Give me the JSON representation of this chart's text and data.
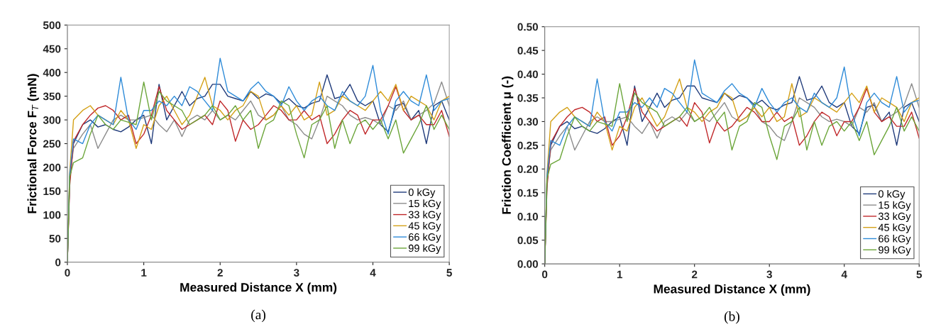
{
  "chart_data": [
    {
      "type": "line",
      "xlabel": "Measured Distance X (mm)",
      "ylabel": "Frictional Force F$_{T}$ (mN)",
      "xlim": [
        0,
        5
      ],
      "xticks": [
        0,
        1,
        2,
        3,
        4,
        5
      ],
      "ylim": [
        0,
        500
      ],
      "yticks": [
        0,
        50,
        100,
        150,
        200,
        250,
        300,
        350,
        400,
        450,
        500
      ],
      "grid": false,
      "legend": "bottom right",
      "marker": "none",
      "line_style": "solid",
      "annotations": [
        "(a)"
      ],
      "x": [
        0,
        0.03,
        0.08,
        0.2,
        0.3,
        0.4,
        0.5,
        0.6,
        0.7,
        0.8,
        0.9,
        1.0,
        1.1,
        1.2,
        1.3,
        1.4,
        1.5,
        1.6,
        1.7,
        1.8,
        1.9,
        2.0,
        2.1,
        2.2,
        2.3,
        2.4,
        2.5,
        2.6,
        2.7,
        2.8,
        2.9,
        3.0,
        3.1,
        3.2,
        3.3,
        3.4,
        3.5,
        3.6,
        3.7,
        3.8,
        3.9,
        4.0,
        4.1,
        4.2,
        4.3,
        4.4,
        4.5,
        4.6,
        4.7,
        4.8,
        4.9,
        5.0
      ],
      "series": [
        {
          "name": "0 kGy",
          "color": "#1f3a7a",
          "values": [
            0,
            170,
            250,
            290,
            300,
            285,
            290,
            280,
            275,
            285,
            300,
            310,
            250,
            375,
            300,
            330,
            360,
            330,
            345,
            350,
            375,
            375,
            350,
            345,
            340,
            360,
            345,
            355,
            350,
            335,
            345,
            330,
            325,
            335,
            340,
            395,
            345,
            350,
            375,
            340,
            330,
            340,
            290,
            275,
            330,
            335,
            300,
            320,
            250,
            330,
            340,
            300
          ]
        },
        {
          "name": "15 kGy",
          "color": "#8c8c8c",
          "values": [
            0,
            180,
            240,
            270,
            290,
            240,
            270,
            300,
            310,
            300,
            300,
            305,
            310,
            290,
            275,
            300,
            265,
            300,
            310,
            300,
            320,
            300,
            310,
            300,
            320,
            340,
            310,
            300,
            310,
            330,
            300,
            290,
            270,
            260,
            300,
            350,
            340,
            330,
            310,
            300,
            305,
            300,
            290,
            330,
            320,
            340,
            300,
            310,
            320,
            335,
            380,
            330
          ]
        },
        {
          "name": "33 kGy",
          "color": "#c0282a",
          "values": [
            0,
            160,
            255,
            290,
            310,
            325,
            330,
            320,
            300,
            310,
            250,
            270,
            310,
            370,
            320,
            300,
            280,
            290,
            300,
            310,
            290,
            340,
            320,
            255,
            300,
            280,
            290,
            310,
            330,
            320,
            300,
            300,
            320,
            300,
            310,
            250,
            270,
            300,
            320,
            310,
            270,
            300,
            300,
            330,
            370,
            320,
            300,
            310,
            290,
            290,
            320,
            265
          ]
        },
        {
          "name": "45 kGy",
          "color": "#d4a017",
          "values": [
            0,
            190,
            300,
            320,
            330,
            310,
            300,
            290,
            320,
            300,
            240,
            290,
            280,
            330,
            350,
            320,
            290,
            310,
            350,
            390,
            330,
            320,
            300,
            320,
            330,
            360,
            350,
            300,
            310,
            330,
            310,
            330,
            300,
            310,
            380,
            310,
            320,
            350,
            340,
            330,
            320,
            340,
            360,
            340,
            375,
            320,
            350,
            340,
            330,
            300,
            340,
            350
          ]
        },
        {
          "name": "66 kGy",
          "color": "#2e8bd8",
          "values": [
            0,
            185,
            260,
            250,
            290,
            310,
            300,
            290,
            390,
            300,
            280,
            320,
            320,
            340,
            330,
            350,
            330,
            370,
            360,
            340,
            320,
            430,
            360,
            350,
            340,
            365,
            380,
            360,
            350,
            330,
            370,
            340,
            320,
            340,
            350,
            330,
            320,
            360,
            340,
            330,
            350,
            415,
            320,
            270,
            340,
            360,
            340,
            330,
            395,
            320,
            340,
            345
          ]
        },
        {
          "name": "99 kGy",
          "color": "#6ba539",
          "values": [
            0,
            180,
            210,
            220,
            270,
            310,
            290,
            280,
            300,
            295,
            290,
            380,
            300,
            360,
            340,
            330,
            320,
            290,
            300,
            310,
            330,
            300,
            310,
            330,
            300,
            320,
            240,
            290,
            300,
            340,
            330,
            270,
            220,
            290,
            300,
            330,
            240,
            300,
            250,
            290,
            300,
            280,
            300,
            260,
            300,
            230,
            260,
            290,
            330,
            280,
            310,
            280
          ]
        }
      ]
    },
    {
      "type": "line",
      "xlabel": "Measured Distance X (mm)",
      "ylabel": "Friction Coefficient μ (-)",
      "xlim": [
        0,
        5
      ],
      "xticks": [
        0,
        1,
        2,
        3,
        4,
        5
      ],
      "ylim": [
        0,
        0.5
      ],
      "yticks": [
        {
          "value": 0,
          "label": "0.00"
        },
        {
          "value": 0.05,
          "label": "0.05"
        },
        {
          "value": 0.1,
          "label": "0.10"
        },
        {
          "value": 0.15,
          "label": "0.15"
        },
        {
          "value": 0.2,
          "label": "0.20"
        },
        {
          "value": 0.25,
          "label": "0.25"
        },
        {
          "value": 0.3,
          "label": "0.30"
        },
        {
          "value": 0.35,
          "label": "0.35"
        },
        {
          "value": 0.4,
          "label": "0.40"
        },
        {
          "value": 0.45,
          "label": "0.45"
        },
        {
          "value": 0.5,
          "label": "0.50"
        }
      ],
      "grid": false,
      "legend": "bottom right",
      "marker": "none",
      "line_style": "solid",
      "annotations": [
        "(b)"
      ],
      "x": [
        0,
        0.03,
        0.08,
        0.2,
        0.3,
        0.4,
        0.5,
        0.6,
        0.7,
        0.8,
        0.9,
        1.0,
        1.1,
        1.2,
        1.3,
        1.4,
        1.5,
        1.6,
        1.7,
        1.8,
        1.9,
        2.0,
        2.1,
        2.2,
        2.3,
        2.4,
        2.5,
        2.6,
        2.7,
        2.8,
        2.9,
        3.0,
        3.1,
        3.2,
        3.3,
        3.4,
        3.5,
        3.6,
        3.7,
        3.8,
        3.9,
        4.0,
        4.1,
        4.2,
        4.3,
        4.4,
        4.5,
        4.6,
        4.7,
        4.8,
        4.9,
        5.0
      ],
      "series": [
        {
          "name": "0 kGy",
          "color": "#1f3a7a",
          "values": [
            0,
            0.17,
            0.25,
            0.29,
            0.3,
            0.285,
            0.29,
            0.28,
            0.275,
            0.285,
            0.3,
            0.31,
            0.25,
            0.375,
            0.3,
            0.33,
            0.36,
            0.33,
            0.345,
            0.35,
            0.375,
            0.375,
            0.35,
            0.345,
            0.34,
            0.36,
            0.345,
            0.355,
            0.35,
            0.335,
            0.345,
            0.33,
            0.325,
            0.335,
            0.34,
            0.395,
            0.345,
            0.35,
            0.375,
            0.34,
            0.33,
            0.34,
            0.29,
            0.275,
            0.33,
            0.335,
            0.3,
            0.32,
            0.25,
            0.33,
            0.34,
            0.3
          ]
        },
        {
          "name": "15 kGy",
          "color": "#8c8c8c",
          "values": [
            0,
            0.18,
            0.24,
            0.27,
            0.29,
            0.24,
            0.27,
            0.3,
            0.31,
            0.3,
            0.3,
            0.305,
            0.31,
            0.29,
            0.275,
            0.3,
            0.265,
            0.3,
            0.31,
            0.3,
            0.32,
            0.3,
            0.31,
            0.3,
            0.32,
            0.34,
            0.31,
            0.3,
            0.31,
            0.33,
            0.3,
            0.29,
            0.27,
            0.26,
            0.3,
            0.35,
            0.34,
            0.33,
            0.31,
            0.3,
            0.305,
            0.3,
            0.29,
            0.33,
            0.32,
            0.34,
            0.3,
            0.31,
            0.32,
            0.335,
            0.38,
            0.33
          ]
        },
        {
          "name": "33 kGy",
          "color": "#c0282a",
          "values": [
            0,
            0.16,
            0.255,
            0.29,
            0.31,
            0.325,
            0.33,
            0.32,
            0.3,
            0.31,
            0.25,
            0.27,
            0.31,
            0.37,
            0.32,
            0.3,
            0.28,
            0.29,
            0.3,
            0.31,
            0.29,
            0.34,
            0.32,
            0.255,
            0.3,
            0.28,
            0.29,
            0.31,
            0.33,
            0.32,
            0.3,
            0.3,
            0.32,
            0.3,
            0.31,
            0.25,
            0.27,
            0.3,
            0.32,
            0.31,
            0.27,
            0.3,
            0.3,
            0.33,
            0.37,
            0.32,
            0.3,
            0.31,
            0.29,
            0.29,
            0.32,
            0.265
          ]
        },
        {
          "name": "45 kGy",
          "color": "#d4a017",
          "values": [
            0,
            0.19,
            0.3,
            0.32,
            0.33,
            0.31,
            0.3,
            0.29,
            0.32,
            0.3,
            0.24,
            0.29,
            0.28,
            0.33,
            0.35,
            0.32,
            0.29,
            0.31,
            0.35,
            0.39,
            0.33,
            0.32,
            0.3,
            0.32,
            0.33,
            0.36,
            0.35,
            0.3,
            0.31,
            0.33,
            0.31,
            0.33,
            0.3,
            0.31,
            0.38,
            0.31,
            0.32,
            0.35,
            0.34,
            0.33,
            0.32,
            0.34,
            0.36,
            0.34,
            0.375,
            0.32,
            0.35,
            0.34,
            0.33,
            0.3,
            0.34,
            0.35
          ]
        },
        {
          "name": "66 kGy",
          "color": "#2e8bd8",
          "values": [
            0,
            0.185,
            0.26,
            0.25,
            0.29,
            0.31,
            0.3,
            0.29,
            0.39,
            0.3,
            0.28,
            0.32,
            0.32,
            0.34,
            0.33,
            0.35,
            0.33,
            0.37,
            0.36,
            0.34,
            0.32,
            0.43,
            0.36,
            0.35,
            0.34,
            0.365,
            0.38,
            0.36,
            0.35,
            0.33,
            0.37,
            0.34,
            0.32,
            0.34,
            0.35,
            0.33,
            0.32,
            0.36,
            0.34,
            0.33,
            0.35,
            0.415,
            0.32,
            0.27,
            0.34,
            0.36,
            0.34,
            0.33,
            0.395,
            0.32,
            0.34,
            0.345
          ]
        },
        {
          "name": "99 kGy",
          "color": "#6ba539",
          "values": [
            0,
            0.18,
            0.21,
            0.22,
            0.27,
            0.31,
            0.29,
            0.28,
            0.3,
            0.295,
            0.29,
            0.38,
            0.3,
            0.36,
            0.34,
            0.33,
            0.32,
            0.29,
            0.3,
            0.31,
            0.33,
            0.3,
            0.31,
            0.33,
            0.3,
            0.32,
            0.24,
            0.29,
            0.3,
            0.34,
            0.33,
            0.27,
            0.22,
            0.29,
            0.3,
            0.33,
            0.24,
            0.3,
            0.25,
            0.29,
            0.3,
            0.28,
            0.3,
            0.26,
            0.3,
            0.23,
            0.26,
            0.29,
            0.33,
            0.28,
            0.31,
            0.28
          ]
        }
      ]
    }
  ]
}
